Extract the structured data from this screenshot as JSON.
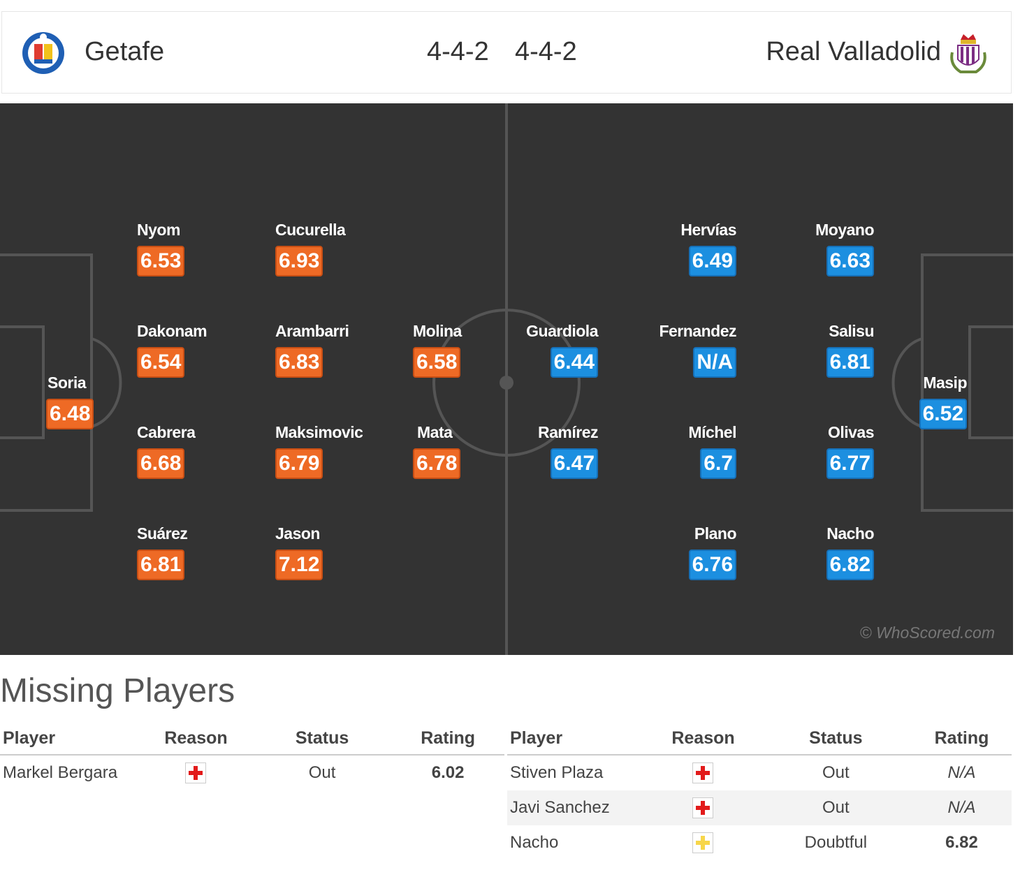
{
  "header": {
    "home_team": "Getafe",
    "away_team": "Real Valladolid",
    "home_formation": "4-4-2",
    "away_formation": "4-4-2",
    "home_crest_icon": "getafe-crest-icon",
    "away_crest_icon": "valladolid-crest-icon"
  },
  "pitch": {
    "watermark": "© WhoScored.com",
    "home_players": [
      {
        "name": "Nyom",
        "rating": "6.53"
      },
      {
        "name": "Cucurella",
        "rating": "6.93"
      },
      {
        "name": "Dakonam",
        "rating": "6.54"
      },
      {
        "name": "Arambarri",
        "rating": "6.83"
      },
      {
        "name": "Molina",
        "rating": "6.58"
      },
      {
        "name": "Soria",
        "rating": "6.48"
      },
      {
        "name": "Cabrera",
        "rating": "6.68"
      },
      {
        "name": "Maksimovic",
        "rating": "6.79"
      },
      {
        "name": "Mata",
        "rating": "6.78"
      },
      {
        "name": "Suárez",
        "rating": "6.81"
      },
      {
        "name": "Jason",
        "rating": "7.12"
      }
    ],
    "away_players": [
      {
        "name": "Hervías",
        "rating": "6.49"
      },
      {
        "name": "Moyano",
        "rating": "6.63"
      },
      {
        "name": "Guardiola",
        "rating": "6.44"
      },
      {
        "name": "Fernandez",
        "rating": "N/A"
      },
      {
        "name": "Salisu",
        "rating": "6.81"
      },
      {
        "name": "Masip",
        "rating": "6.52"
      },
      {
        "name": "Ramírez",
        "rating": "6.47"
      },
      {
        "name": "Míchel",
        "rating": "6.7"
      },
      {
        "name": "Olivas",
        "rating": "6.77"
      },
      {
        "name": "Plano",
        "rating": "6.76"
      },
      {
        "name": "Nacho",
        "rating": "6.82"
      }
    ],
    "home_color": "#ee6a25",
    "away_color": "#1c8fe0"
  },
  "missing": {
    "title": "Missing Players",
    "columns": [
      "Player",
      "Reason",
      "Status",
      "Rating"
    ],
    "home": [
      {
        "player": "Markel Bergara",
        "reason_icon": "injury-icon",
        "status": "Out",
        "rating": "6.02"
      }
    ],
    "away": [
      {
        "player": "Stiven Plaza",
        "reason_icon": "injury-icon",
        "status": "Out",
        "rating": "N/A"
      },
      {
        "player": "Javi Sanchez",
        "reason_icon": "injury-icon",
        "status": "Out",
        "rating": "N/A"
      },
      {
        "player": "Nacho",
        "reason_icon": "doubtful-icon",
        "status": "Doubtful",
        "rating": "6.82"
      }
    ]
  }
}
